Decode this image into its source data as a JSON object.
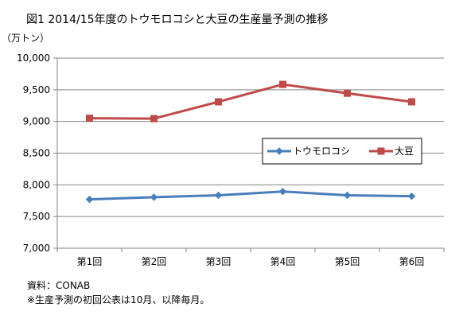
{
  "chart_data": {
    "type": "line",
    "title": "図1 2014/15年度のトウモロコシと大豆の生産量予測の推移",
    "ylabel": "（万トン）",
    "xlabel": "",
    "categories": [
      "第1回",
      "第2回",
      "第3回",
      "第4回",
      "第5回",
      "第6回"
    ],
    "ylim": [
      7000,
      10000
    ],
    "yticks": [
      7000,
      7500,
      8000,
      8500,
      9000,
      9500,
      10000
    ],
    "ytick_labels": [
      "7,000",
      "7,500",
      "8,000",
      "8,500",
      "9,000",
      "9,500",
      "10,000"
    ],
    "grid": "horizontal",
    "legend_position": "right",
    "series": [
      {
        "name": "トウモロコシ",
        "color": "#4a7ebb",
        "marker": "diamond",
        "values": [
          7770,
          7805,
          7835,
          7895,
          7835,
          7820
        ]
      },
      {
        "name": "大豆",
        "color": "#be4b48",
        "marker": "square",
        "values": [
          9050,
          9045,
          9310,
          9585,
          9445,
          9310
        ]
      }
    ]
  },
  "notes": {
    "source": "資料：CONAB",
    "remark": "※生産予測の初回公表は10月、以降毎月。"
  }
}
